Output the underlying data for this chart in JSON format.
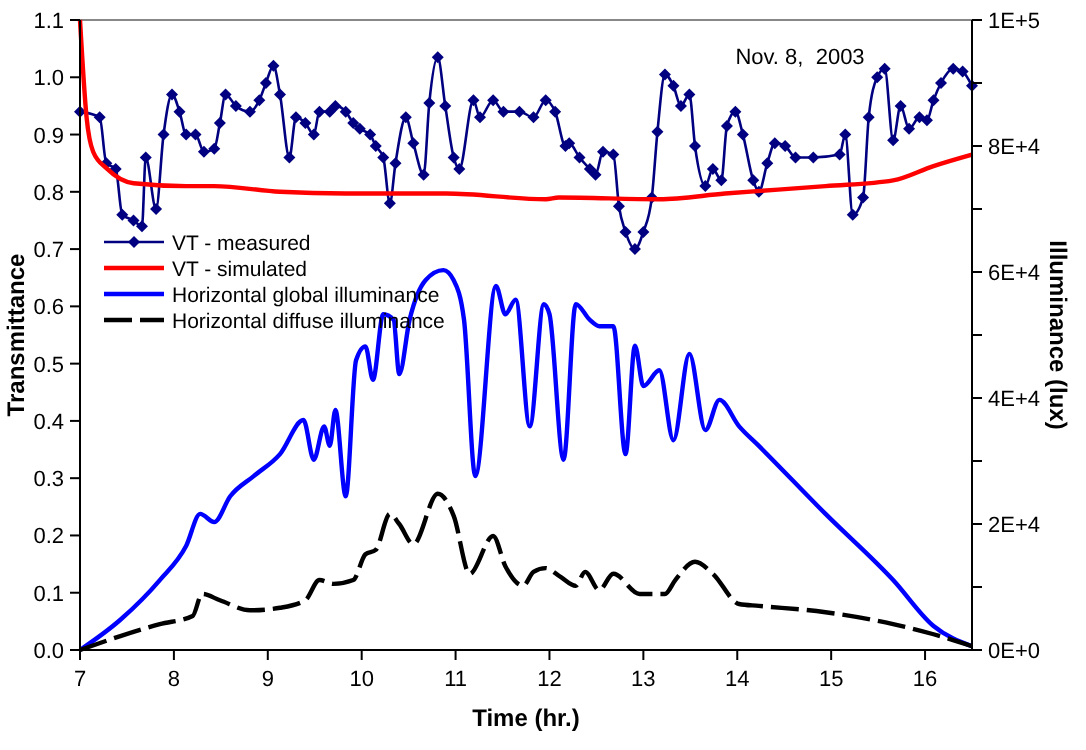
{
  "chart_data": {
    "type": "line",
    "xlabel": "Time (hr.)",
    "ylabel": "Transmittance",
    "y2label": "Illuminance (lux)",
    "annotations": [
      "Nov. 8,  2003"
    ],
    "xlim": [
      7,
      16.5
    ],
    "xticks": [
      7,
      8,
      9,
      10,
      11,
      12,
      13,
      14,
      15,
      16
    ],
    "ylim": [
      0,
      1.1
    ],
    "yticks": [
      {
        "value": 0,
        "label": "0.0"
      },
      {
        "value": 0.1,
        "label": "0.1"
      },
      {
        "value": 0.2,
        "label": "0.2"
      },
      {
        "value": 0.3,
        "label": "0.3"
      },
      {
        "value": 0.4,
        "label": "0.4"
      },
      {
        "value": 0.5,
        "label": "0.5"
      },
      {
        "value": 0.6,
        "label": "0.6"
      },
      {
        "value": 0.7,
        "label": "0.7"
      },
      {
        "value": 0.8,
        "label": "0.8"
      },
      {
        "value": 0.9,
        "label": "0.9"
      },
      {
        "value": 1,
        "label": "1.0"
      },
      {
        "value": 1.1,
        "label": "1.1"
      }
    ],
    "y2lim": [
      0,
      100000
    ],
    "y2ticks": [
      {
        "value": 0,
        "label": "0E+0"
      },
      {
        "value": 10000,
        "label": null
      },
      {
        "value": 20000,
        "label": "2E+4"
      },
      {
        "value": 30000,
        "label": null
      },
      {
        "value": 40000,
        "label": "4E+4"
      },
      {
        "value": 50000,
        "label": null
      },
      {
        "value": 60000,
        "label": "6E+4"
      },
      {
        "value": 70000,
        "label": null
      },
      {
        "value": 80000,
        "label": "8E+4"
      },
      {
        "value": 90000,
        "label": null
      },
      {
        "value": 100000,
        "label": "1E+5"
      }
    ],
    "grid": false,
    "legend": "left",
    "series": [
      {
        "name": "VT - measured",
        "color": "#000080",
        "marker": "diamond",
        "line_style": "solid",
        "x": [
          7.0,
          7.21,
          7.28,
          7.38,
          7.45,
          7.57,
          7.66,
          7.7,
          7.81,
          7.89,
          7.98,
          8.06,
          8.13,
          8.23,
          8.32,
          8.43,
          8.49,
          8.55,
          8.66,
          8.81,
          8.91,
          8.98,
          9.06,
          9.13,
          9.23,
          9.3,
          9.4,
          9.49,
          9.55,
          9.66,
          9.72,
          9.83,
          9.91,
          9.98,
          10.09,
          10.15,
          10.23,
          10.3,
          10.36,
          10.47,
          10.55,
          10.66,
          10.72,
          10.81,
          10.89,
          10.98,
          11.04,
          11.19,
          11.26,
          11.4,
          11.51,
          11.68,
          11.83,
          11.96,
          12.06,
          12.17,
          12.21,
          12.32,
          12.43,
          12.49,
          12.57,
          12.68,
          12.74,
          12.81,
          12.91,
          13.0,
          13.09,
          13.15,
          13.23,
          13.32,
          13.4,
          13.49,
          13.55,
          13.66,
          13.74,
          13.83,
          13.89,
          13.98,
          14.06,
          14.17,
          14.23,
          14.32,
          14.4,
          14.51,
          14.62,
          14.81,
          15.09,
          15.15,
          15.23,
          15.34,
          15.4,
          15.49,
          15.57,
          15.66,
          15.74,
          15.83,
          15.94,
          16.02,
          16.09,
          16.17,
          16.3,
          16.4,
          16.5
        ],
        "values": [
          0.94,
          0.93,
          0.85,
          0.84,
          0.76,
          0.75,
          0.74,
          0.86,
          0.77,
          0.9,
          0.97,
          0.94,
          0.9,
          0.9,
          0.87,
          0.875,
          0.92,
          0.97,
          0.95,
          0.94,
          0.96,
          0.99,
          1.02,
          0.97,
          0.86,
          0.93,
          0.92,
          0.9,
          0.94,
          0.94,
          0.95,
          0.94,
          0.92,
          0.91,
          0.9,
          0.88,
          0.86,
          0.78,
          0.85,
          0.93,
          0.885,
          0.83,
          0.955,
          1.035,
          0.95,
          0.86,
          0.84,
          0.96,
          0.93,
          0.96,
          0.94,
          0.94,
          0.93,
          0.96,
          0.94,
          0.88,
          0.885,
          0.86,
          0.84,
          0.83,
          0.87,
          0.865,
          0.775,
          0.73,
          0.7,
          0.73,
          0.79,
          0.905,
          1.005,
          0.985,
          0.95,
          0.97,
          0.88,
          0.81,
          0.84,
          0.82,
          0.915,
          0.94,
          0.9,
          0.82,
          0.8,
          0.85,
          0.885,
          0.88,
          0.86,
          0.86,
          0.865,
          0.9,
          0.76,
          0.79,
          0.93,
          1.0,
          1.015,
          0.89,
          0.95,
          0.91,
          0.93,
          0.925,
          0.96,
          0.99,
          1.015,
          1.01,
          0.985
        ]
      },
      {
        "name": "VT - simulated",
        "color": "#ff0000",
        "marker": "none",
        "line_style": "solid",
        "x": [
          7.0,
          7.07,
          7.14,
          7.29,
          7.57,
          8.13,
          8.43,
          9.13,
          9.83,
          10.9,
          11.96,
          12.1,
          13.17,
          13.87,
          14.94,
          15.66,
          16.09,
          16.5
        ],
        "values": [
          1.1,
          0.93,
          0.87,
          0.84,
          0.815,
          0.81,
          0.81,
          0.8,
          0.797,
          0.797,
          0.787,
          0.79,
          0.787,
          0.797,
          0.81,
          0.82,
          0.845,
          0.865
        ]
      },
      {
        "name": "Horizontal global illuminance",
        "color": "#0000ff",
        "axis": "y2",
        "marker": "none",
        "line_style": "solid",
        "x": [
          7.0,
          7.43,
          7.85,
          8.13,
          8.28,
          8.43,
          8.6,
          8.85,
          9.13,
          9.38,
          9.49,
          9.6,
          9.66,
          9.72,
          9.83,
          9.94,
          10.04,
          10.12,
          10.23,
          10.34,
          10.4,
          10.51,
          10.68,
          10.87,
          10.98,
          11.09,
          11.21,
          11.43,
          11.53,
          11.64,
          11.79,
          11.94,
          12.0,
          12.15,
          12.28,
          12.43,
          12.53,
          12.68,
          12.81,
          12.91,
          13.0,
          13.17,
          13.32,
          13.49,
          13.66,
          13.81,
          14.02,
          14.23,
          14.94,
          15.66,
          16.09,
          16.5
        ],
        "values": [
          0,
          4800,
          11100,
          16500,
          21600,
          20300,
          24400,
          27600,
          31100,
          36500,
          30200,
          35500,
          32400,
          38100,
          24400,
          46000,
          48200,
          42900,
          53300,
          52400,
          43800,
          52400,
          58700,
          60300,
          58700,
          52400,
          27600,
          57800,
          53300,
          55600,
          35500,
          54900,
          53300,
          30200,
          54900,
          52400,
          51400,
          51400,
          31100,
          48300,
          41900,
          44400,
          33300,
          47000,
          34900,
          39700,
          35500,
          32400,
          21600,
          11100,
          3800,
          600
        ]
      },
      {
        "name": "Horizontal diffuse illuminance",
        "color": "#000000",
        "axis": "y2",
        "marker": "none",
        "line_style": "dashed",
        "x": [
          7.0,
          7.43,
          7.85,
          8.2,
          8.3,
          8.49,
          8.81,
          9.13,
          9.4,
          9.55,
          9.7,
          9.91,
          10.04,
          10.15,
          10.3,
          10.4,
          10.55,
          10.81,
          10.98,
          11.15,
          11.4,
          11.53,
          11.72,
          11.83,
          11.96,
          12.11,
          12.28,
          12.38,
          12.53,
          12.68,
          12.96,
          13.23,
          13.34,
          13.55,
          13.74,
          14.02,
          14.23,
          14.94,
          15.66,
          16.09,
          16.5
        ],
        "values": [
          0,
          2200,
          4100,
          5400,
          8900,
          7900,
          6300,
          6700,
          7900,
          11100,
          10500,
          11100,
          15200,
          15900,
          21600,
          20000,
          16800,
          24800,
          21300,
          12100,
          18100,
          13300,
          10200,
          12400,
          13000,
          11700,
          10200,
          12400,
          9500,
          12100,
          8900,
          8900,
          11100,
          14000,
          12100,
          7300,
          7000,
          6000,
          4100,
          2500,
          600
        ]
      }
    ]
  }
}
